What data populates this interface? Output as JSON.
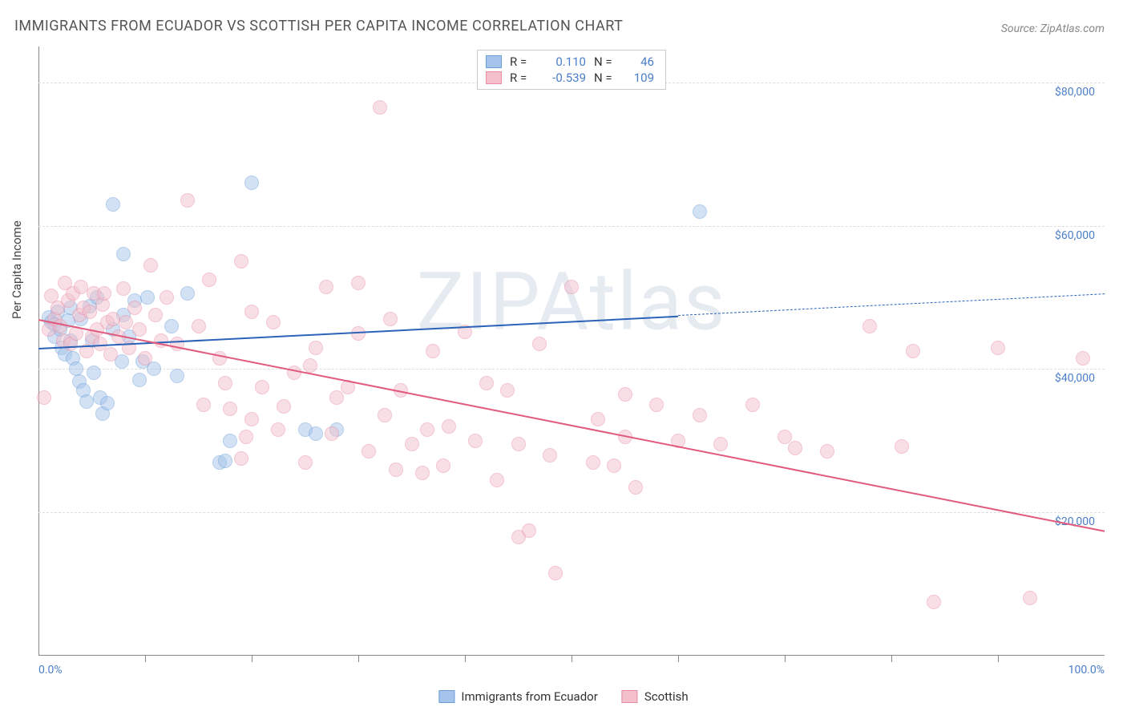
{
  "title": "IMMIGRANTS FROM ECUADOR VS SCOTTISH PER CAPITA INCOME CORRELATION CHART",
  "source": "Source: ZipAtlas.com",
  "watermark": "ZIPAtlas",
  "chart": {
    "type": "scatter",
    "xlim": [
      0,
      100
    ],
    "ylim": [
      0,
      85000
    ],
    "x_start_label": "0.0%",
    "x_end_label": "100.0%",
    "y_ticks": [
      20000,
      40000,
      60000,
      80000
    ],
    "y_tick_labels": [
      "$20,000",
      "$40,000",
      "$60,000",
      "$80,000"
    ],
    "y_axis_title": "Per Capita Income",
    "x_tick_positions": [
      10,
      20,
      30,
      40,
      50,
      60,
      70,
      80,
      90
    ],
    "background_color": "#ffffff",
    "grid_color": "#dddddd",
    "axis_color": "#888888",
    "tick_label_color": "#4a7ec9",
    "marker_radius": 9,
    "marker_opacity": 0.5
  },
  "series": [
    {
      "name": "Immigrants from Ecuador",
      "color_fill": "#a6c4eb",
      "color_stroke": "#6b9fd8",
      "R": "0.110",
      "N": "46",
      "trend": {
        "x0": 0,
        "y0": 43000,
        "x1": 60,
        "y1": 47500,
        "x1_ext": 100,
        "y1_ext": 50500,
        "dash_after": 60,
        "stroke": "#2b63b8",
        "width": 2.5
      },
      "points": [
        [
          1,
          47200
        ],
        [
          1.2,
          46500
        ],
        [
          1.5,
          46200
        ],
        [
          1.8,
          48000
        ],
        [
          1.5,
          44500
        ],
        [
          2,
          45500
        ],
        [
          2.2,
          43000
        ],
        [
          2.5,
          42000
        ],
        [
          2.8,
          46800
        ],
        [
          3,
          48500
        ],
        [
          3,
          44000
        ],
        [
          3.2,
          41500
        ],
        [
          3.5,
          40000
        ],
        [
          3.8,
          38200
        ],
        [
          4,
          47000
        ],
        [
          4.2,
          37000
        ],
        [
          4.5,
          35500
        ],
        [
          4.8,
          48800
        ],
        [
          5,
          44000
        ],
        [
          5.2,
          39500
        ],
        [
          5.5,
          50000
        ],
        [
          5.8,
          36000
        ],
        [
          6,
          33800
        ],
        [
          6.5,
          35200
        ],
        [
          7,
          63000
        ],
        [
          7,
          45500
        ],
        [
          7.8,
          41000
        ],
        [
          8,
          47500
        ],
        [
          8,
          56000
        ],
        [
          8.5,
          44500
        ],
        [
          9,
          49500
        ],
        [
          9.5,
          38500
        ],
        [
          9.8,
          41000
        ],
        [
          10.2,
          50000
        ],
        [
          10.8,
          40000
        ],
        [
          12.5,
          46000
        ],
        [
          13,
          39000
        ],
        [
          14,
          50500
        ],
        [
          17,
          27000
        ],
        [
          17.5,
          27200
        ],
        [
          18,
          30000
        ],
        [
          20,
          66000
        ],
        [
          25,
          31500
        ],
        [
          26,
          31000
        ],
        [
          28,
          31500
        ],
        [
          62,
          62000
        ]
      ]
    },
    {
      "name": "Scottish",
      "color_fill": "#f3c0cc",
      "color_stroke": "#e88ba3",
      "R": "-0.539",
      "N": "109",
      "trend": {
        "x0": 0,
        "y0": 47000,
        "x1": 100,
        "y1": 17500,
        "stroke": "#e15a7d",
        "width": 2.5
      },
      "points": [
        [
          0.5,
          36000
        ],
        [
          1,
          45500
        ],
        [
          1.2,
          50200
        ],
        [
          1.5,
          47000
        ],
        [
          1.8,
          48500
        ],
        [
          2,
          46000
        ],
        [
          2.3,
          44000
        ],
        [
          2.5,
          52000
        ],
        [
          2.8,
          49500
        ],
        [
          3,
          43500
        ],
        [
          3.2,
          50500
        ],
        [
          3.5,
          45000
        ],
        [
          3.8,
          47500
        ],
        [
          4,
          51500
        ],
        [
          4.2,
          48500
        ],
        [
          4.5,
          42500
        ],
        [
          4.8,
          48000
        ],
        [
          5,
          44500
        ],
        [
          5.2,
          50500
        ],
        [
          5.5,
          45500
        ],
        [
          5.8,
          43500
        ],
        [
          6,
          49000
        ],
        [
          6.2,
          50500
        ],
        [
          6.5,
          46500
        ],
        [
          6.8,
          42000
        ],
        [
          7,
          47000
        ],
        [
          7.5,
          44500
        ],
        [
          8,
          51200
        ],
        [
          8.2,
          46500
        ],
        [
          8.5,
          43000
        ],
        [
          9,
          48500
        ],
        [
          9.5,
          45500
        ],
        [
          10,
          41500
        ],
        [
          10.5,
          54500
        ],
        [
          11,
          47500
        ],
        [
          11.5,
          44000
        ],
        [
          12,
          50000
        ],
        [
          13,
          43500
        ],
        [
          14,
          63500
        ],
        [
          15,
          46000
        ],
        [
          15.5,
          35000
        ],
        [
          16,
          52500
        ],
        [
          17,
          41500
        ],
        [
          17.5,
          38000
        ],
        [
          18,
          34500
        ],
        [
          19,
          55000
        ],
        [
          19,
          27500
        ],
        [
          19.5,
          30500
        ],
        [
          20,
          48000
        ],
        [
          20,
          33000
        ],
        [
          21,
          37500
        ],
        [
          22,
          46500
        ],
        [
          22.5,
          31500
        ],
        [
          23,
          34800
        ],
        [
          24,
          39500
        ],
        [
          25,
          27000
        ],
        [
          25.5,
          40500
        ],
        [
          26,
          43000
        ],
        [
          27,
          51500
        ],
        [
          27.5,
          31000
        ],
        [
          28,
          36000
        ],
        [
          29,
          37500
        ],
        [
          30,
          45000
        ],
        [
          30,
          52000
        ],
        [
          31,
          28500
        ],
        [
          32,
          76500
        ],
        [
          32.5,
          33500
        ],
        [
          33,
          47000
        ],
        [
          33.5,
          26000
        ],
        [
          34,
          37000
        ],
        [
          35,
          29500
        ],
        [
          36,
          25500
        ],
        [
          36.5,
          31500
        ],
        [
          37,
          42500
        ],
        [
          38,
          26500
        ],
        [
          38.5,
          32000
        ],
        [
          40,
          45200
        ],
        [
          41,
          30000
        ],
        [
          42,
          38000
        ],
        [
          43,
          24500
        ],
        [
          44,
          37000
        ],
        [
          45,
          29500
        ],
        [
          45,
          16500
        ],
        [
          46,
          17500
        ],
        [
          47,
          43500
        ],
        [
          48,
          28000
        ],
        [
          48.5,
          11500
        ],
        [
          50,
          51500
        ],
        [
          52,
          27000
        ],
        [
          52.5,
          33000
        ],
        [
          54,
          26500
        ],
        [
          55,
          36500
        ],
        [
          55,
          30500
        ],
        [
          56,
          23500
        ],
        [
          58,
          35000
        ],
        [
          60,
          30000
        ],
        [
          62,
          33500
        ],
        [
          64,
          29500
        ],
        [
          67,
          35000
        ],
        [
          70,
          30500
        ],
        [
          71,
          29000
        ],
        [
          74,
          28500
        ],
        [
          78,
          46000
        ],
        [
          81,
          29200
        ],
        [
          82,
          42500
        ],
        [
          84,
          7500
        ],
        [
          90,
          43000
        ],
        [
          93,
          8000
        ],
        [
          98,
          41500
        ]
      ]
    }
  ],
  "bottom_legend": [
    {
      "swatch_fill": "#a6c4eb",
      "swatch_stroke": "#6b9fd8",
      "label": "Immigrants from Ecuador"
    },
    {
      "swatch_fill": "#f3c0cc",
      "swatch_stroke": "#e88ba3",
      "label": "Scottish"
    }
  ]
}
